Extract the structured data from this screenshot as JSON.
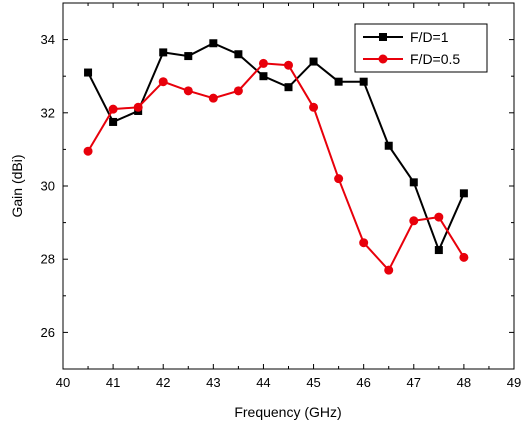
{
  "chart_data": {
    "type": "line",
    "title": "",
    "xlabel": "Frequency (GHz)",
    "ylabel": "Gain (dBi)",
    "xlim": [
      40,
      49
    ],
    "ylim": [
      25,
      35
    ],
    "xticks": [
      40,
      41,
      42,
      43,
      44,
      45,
      46,
      47,
      48,
      49
    ],
    "yticks": [
      26,
      28,
      30,
      32,
      34
    ],
    "grid": false,
    "legend_position": "top-right",
    "series": [
      {
        "name": "F/D=1",
        "color": "#000000",
        "marker": "square",
        "x": [
          40.5,
          41,
          41.5,
          42,
          42.5,
          43,
          43.5,
          44,
          44.5,
          45,
          45.5,
          46,
          46.5,
          47,
          47.5,
          48
        ],
        "y": [
          33.1,
          31.75,
          32.05,
          33.65,
          33.55,
          33.9,
          33.6,
          33.0,
          32.7,
          33.4,
          32.85,
          32.85,
          31.1,
          30.1,
          28.25,
          29.8
        ]
      },
      {
        "name": "F/D=0.5",
        "color": "#e8000b",
        "marker": "circle",
        "x": [
          40.5,
          41,
          41.5,
          42,
          42.5,
          43,
          43.5,
          44,
          44.5,
          45,
          45.5,
          46,
          46.5,
          47,
          47.5,
          48
        ],
        "y": [
          30.95,
          32.1,
          32.15,
          32.85,
          32.6,
          32.4,
          32.6,
          33.35,
          33.3,
          32.15,
          30.2,
          28.45,
          27.7,
          29.05,
          29.15,
          28.05
        ]
      }
    ]
  }
}
